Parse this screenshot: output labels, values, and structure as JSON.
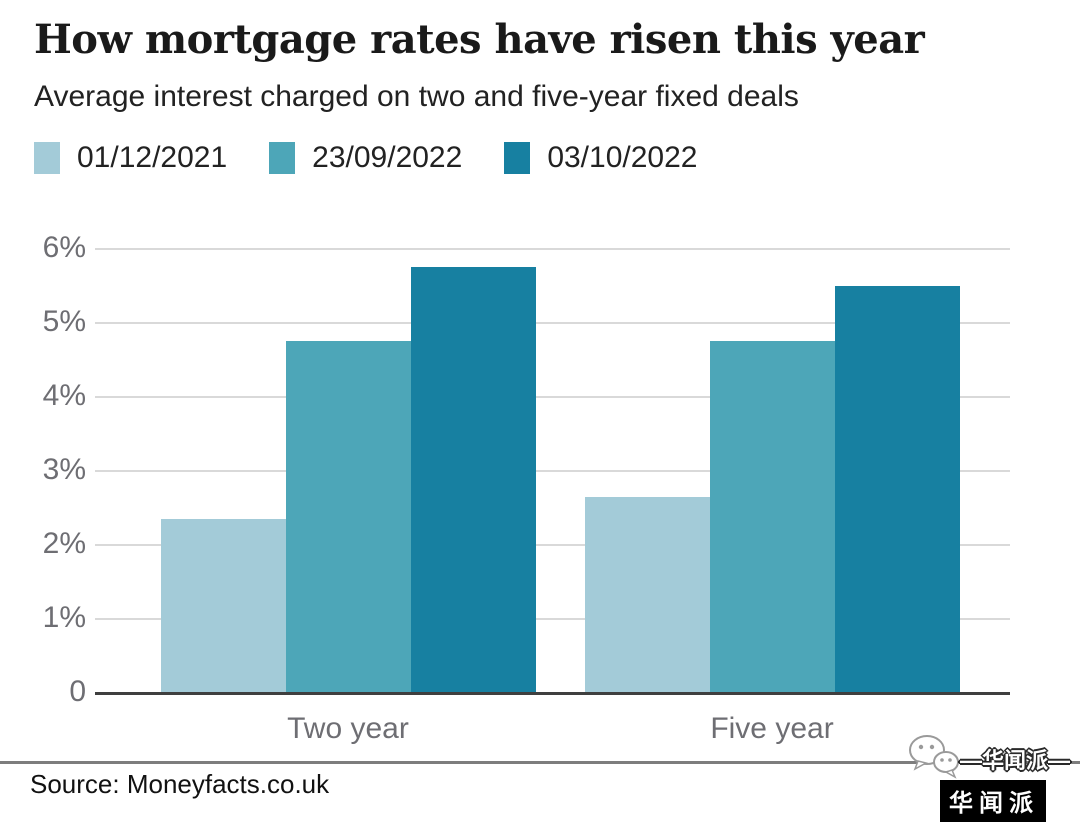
{
  "header": {
    "title": "How mortgage rates have risen this year",
    "subtitle": "Average interest charged on two and five-year fixed deals"
  },
  "chart_data": {
    "type": "bar",
    "title": "How mortgage rates have risen this year",
    "subtitle": "Average interest charged on two and five-year fixed deals",
    "categories": [
      "Two year",
      "Five year"
    ],
    "series": [
      {
        "name": "01/12/2021",
        "color": "#a3cbd8",
        "values": [
          2.34,
          2.64
        ]
      },
      {
        "name": "23/09/2022",
        "color": "#4da6b8",
        "values": [
          4.74,
          4.75
        ]
      },
      {
        "name": "03/10/2022",
        "color": "#1780a1",
        "values": [
          5.75,
          5.48
        ]
      }
    ],
    "xlabel": "",
    "ylabel": "",
    "ylim": [
      0,
      6
    ],
    "yticks": [
      {
        "value": 0,
        "label": "0"
      },
      {
        "value": 1,
        "label": "1%"
      },
      {
        "value": 2,
        "label": "2%"
      },
      {
        "value": 3,
        "label": "3%"
      },
      {
        "value": 4,
        "label": "4%"
      },
      {
        "value": 5,
        "label": "5%"
      },
      {
        "value": 6,
        "label": "6%"
      }
    ],
    "grid": "horizontal",
    "legend_position": "top"
  },
  "footer": {
    "source": "Source: Moneyfacts.co.uk"
  },
  "watermark": {
    "account": "—华闻派—",
    "badge": "华闻派"
  }
}
